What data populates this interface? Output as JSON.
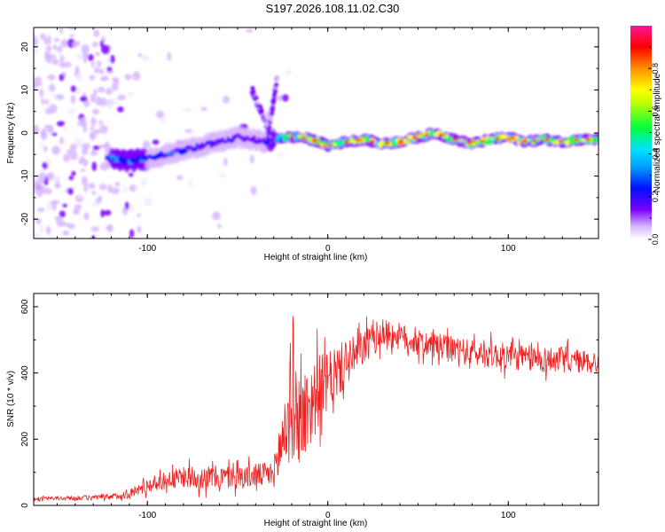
{
  "figure_title": "S197.2026.108.11.02.C30",
  "chart_data": [
    {
      "type": "heatmap",
      "title": "S197.2026.108.11.02.C30",
      "xlabel": "Height of straight line (km)",
      "ylabel": "Frequency (Hz)",
      "xlim": [
        -163,
        150
      ],
      "ylim": [
        -24.5,
        24.5
      ],
      "xticks": [
        -100,
        0,
        100
      ],
      "xtick_labels": [
        "-100",
        "0",
        "100"
      ],
      "yticks": [
        -20,
        -10,
        0,
        10,
        20
      ],
      "ytick_labels": [
        "-20",
        "-10",
        "0",
        "10",
        "20"
      ],
      "colorbar": {
        "label": "Normalized spectral amplitude",
        "range": [
          0,
          1
        ],
        "ticks": [
          0.0,
          0.2,
          0.4,
          0.6,
          0.8
        ],
        "tick_labels": [
          "0.0",
          "0.2",
          "0.4",
          "0.6",
          "0.8"
        ],
        "colormap_stops": [
          "#ffffff",
          "#d8b8ff",
          "#7a00ff",
          "#0010ff",
          "#00e0ff",
          "#00ff40",
          "#ffff00",
          "#ff9000",
          "#ff0000",
          "#ff1493"
        ]
      },
      "ridge": {
        "x": [
          -120,
          -110,
          -100,
          -90,
          -80,
          -70,
          -60,
          -50,
          -42,
          -35,
          -25,
          -15,
          -5,
          0,
          10,
          20,
          30,
          40,
          50,
          60,
          70,
          80,
          90,
          100,
          110,
          120,
          130,
          140,
          150
        ],
        "freq": [
          -6,
          -6.5,
          -6,
          -5,
          -4,
          -3,
          -2,
          -1,
          -1.5,
          -2,
          -1,
          -1,
          -2,
          -3,
          -2,
          -1.5,
          -2.5,
          -2,
          -1,
          0,
          -1.5,
          -2.5,
          -1.5,
          -1,
          -2,
          -1.5,
          -2,
          -1.5,
          -1.5
        ],
        "amplitude": [
          0.35,
          0.38,
          0.35,
          0.35,
          0.3,
          0.3,
          0.3,
          0.3,
          0.25,
          0.3,
          0.55,
          0.75,
          0.8,
          0.85,
          0.8,
          0.85,
          0.8,
          0.85,
          0.82,
          0.85,
          0.8,
          0.85,
          0.8,
          0.85,
          0.82,
          0.8,
          0.78,
          0.8,
          0.8
        ]
      },
      "features": [
        {
          "name": "diagonal streak",
          "x": [
            -42,
            -30
          ],
          "freq": [
            10,
            -2
          ]
        },
        {
          "name": "short streak",
          "x": [
            -33,
            -28
          ],
          "freq": [
            0,
            13
          ]
        }
      ]
    },
    {
      "type": "line",
      "xlabel": "Height of straight line (km)",
      "ylabel": "SNR (10 * v/v)",
      "xlim": [
        -163,
        150
      ],
      "ylim": [
        0,
        640
      ],
      "xticks": [
        -100,
        0,
        100
      ],
      "xtick_labels": [
        "-100",
        "0",
        "100"
      ],
      "yticks": [
        0,
        200,
        400,
        600
      ],
      "ytick_labels": [
        "0",
        "200",
        "400",
        "600"
      ],
      "line_color": "#ee2222",
      "series": [
        {
          "name": "SNR",
          "x": [
            -163,
            -140,
            -120,
            -110,
            -100,
            -90,
            -80,
            -70,
            -60,
            -50,
            -40,
            -30,
            -25,
            -20,
            -15,
            -10,
            -5,
            0,
            5,
            10,
            15,
            20,
            25,
            30,
            40,
            50,
            60,
            70,
            80,
            90,
            100,
            110,
            120,
            130,
            140,
            150
          ],
          "values": [
            20,
            22,
            25,
            35,
            60,
            75,
            85,
            85,
            85,
            85,
            90,
            95,
            200,
            300,
            260,
            300,
            350,
            370,
            400,
            430,
            450,
            480,
            500,
            520,
            510,
            490,
            480,
            470,
            460,
            455,
            450,
            445,
            440,
            440,
            435,
            430
          ],
          "noise": [
            5,
            8,
            10,
            15,
            25,
            30,
            35,
            40,
            40,
            40,
            40,
            45,
            150,
            180,
            160,
            150,
            120,
            100,
            90,
            80,
            70,
            60,
            55,
            50,
            45,
            45,
            45,
            45,
            45,
            45,
            45,
            45,
            45,
            45,
            40,
            40
          ]
        }
      ]
    }
  ]
}
